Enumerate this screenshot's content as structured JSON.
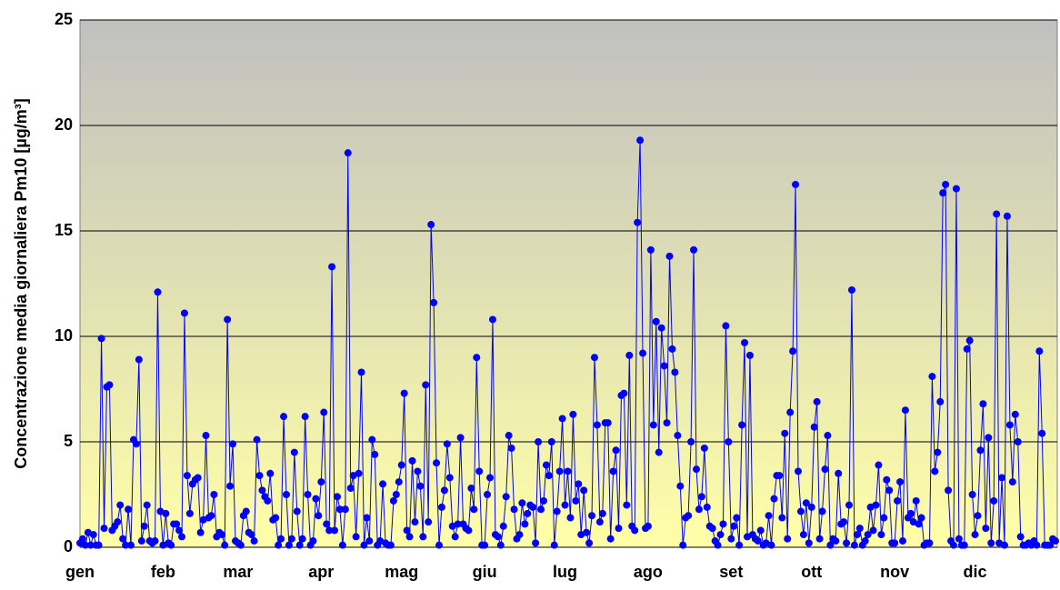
{
  "chart_data": {
    "type": "line",
    "y_label": "Concentrazione media giornaliera Pm10 [µg/m³]",
    "categories": [
      "gen",
      null,
      null,
      null,
      null,
      null,
      null,
      null,
      null,
      null,
      null,
      null,
      null,
      null,
      null,
      null,
      null,
      null,
      null,
      null,
      null,
      null,
      null,
      null,
      null,
      null,
      null,
      null,
      null,
      null,
      null,
      "feb",
      null,
      null,
      null,
      null,
      null,
      null,
      null,
      null,
      null,
      null,
      null,
      null,
      null,
      null,
      null,
      null,
      null,
      null,
      null,
      null,
      null,
      null,
      null,
      null,
      null,
      null,
      null,
      "mar",
      null,
      null,
      null,
      null,
      null,
      null,
      null,
      null,
      null,
      null,
      null,
      null,
      null,
      null,
      null,
      null,
      null,
      null,
      null,
      null,
      null,
      null,
      null,
      null,
      null,
      null,
      null,
      null,
      null,
      null,
      "apr",
      null,
      null,
      null,
      null,
      null,
      null,
      null,
      null,
      null,
      null,
      null,
      null,
      null,
      null,
      null,
      null,
      null,
      null,
      null,
      null,
      null,
      null,
      null,
      null,
      null,
      null,
      null,
      null,
      null,
      "mag",
      null,
      null,
      null,
      null,
      null,
      null,
      null,
      null,
      null,
      null,
      null,
      null,
      null,
      null,
      null,
      null,
      null,
      null,
      null,
      null,
      null,
      null,
      null,
      null,
      null,
      null,
      null,
      null,
      null,
      null,
      "giu",
      null,
      null,
      null,
      null,
      null,
      null,
      null,
      null,
      null,
      null,
      null,
      null,
      null,
      null,
      null,
      null,
      null,
      null,
      null,
      null,
      null,
      null,
      null,
      null,
      null,
      null,
      null,
      null,
      null,
      "lug",
      null,
      null,
      null,
      null,
      null,
      null,
      null,
      null,
      null,
      null,
      null,
      null,
      null,
      null,
      null,
      null,
      null,
      null,
      null,
      null,
      null,
      null,
      null,
      null,
      null,
      null,
      null,
      null,
      null,
      null,
      "ago",
      null,
      null,
      null,
      null,
      null,
      null,
      null,
      null,
      null,
      null,
      null,
      null,
      null,
      null,
      null,
      null,
      null,
      null,
      null,
      null,
      null,
      null,
      null,
      null,
      null,
      null,
      null,
      null,
      null,
      null,
      "set",
      null,
      null,
      null,
      null,
      null,
      null,
      null,
      null,
      null,
      null,
      null,
      null,
      null,
      null,
      null,
      null,
      null,
      null,
      null,
      null,
      null,
      null,
      null,
      null,
      null,
      null,
      null,
      null,
      null,
      "ott",
      null,
      null,
      null,
      null,
      null,
      null,
      null,
      null,
      null,
      null,
      null,
      null,
      null,
      null,
      null,
      null,
      null,
      null,
      null,
      null,
      null,
      null,
      null,
      null,
      null,
      null,
      null,
      null,
      null,
      null,
      "nov",
      null,
      null,
      null,
      null,
      null,
      null,
      null,
      null,
      null,
      null,
      null,
      null,
      null,
      null,
      null,
      null,
      null,
      null,
      null,
      null,
      null,
      null,
      null,
      null,
      null,
      null,
      null,
      null,
      null,
      "dic",
      null,
      null,
      null,
      null,
      null,
      null,
      null,
      null,
      null,
      null,
      null,
      null,
      null,
      null,
      null,
      null,
      null,
      null,
      null,
      null,
      null,
      null,
      null,
      null,
      null,
      null,
      null,
      null,
      null,
      null
    ],
    "values": [
      0.2,
      0.4,
      0.1,
      0.7,
      0.1,
      0.6,
      0.1,
      0.1,
      9.9,
      0.9,
      7.6,
      7.7,
      0.8,
      1.0,
      1.2,
      2.0,
      0.4,
      0.1,
      1.8,
      0.1,
      5.1,
      4.9,
      8.9,
      0.3,
      1.0,
      2.0,
      0.3,
      0.2,
      0.3,
      12.1,
      1.7,
      0.1,
      1.6,
      0.2,
      0.1,
      1.1,
      1.1,
      0.8,
      0.5,
      11.1,
      3.4,
      1.6,
      3.0,
      3.2,
      3.3,
      0.7,
      1.3,
      5.3,
      1.4,
      1.5,
      2.5,
      0.5,
      0.7,
      0.6,
      0.1,
      10.8,
      2.9,
      4.9,
      0.3,
      0.2,
      0.1,
      1.5,
      1.7,
      0.7,
      0.6,
      0.3,
      5.1,
      3.4,
      2.7,
      2.4,
      2.2,
      3.5,
      1.3,
      1.4,
      0.1,
      0.4,
      6.2,
      2.5,
      0.1,
      0.4,
      4.5,
      1.7,
      0.1,
      0.4,
      6.2,
      2.5,
      0.1,
      0.3,
      2.3,
      1.5,
      3.1,
      6.4,
      1.1,
      0.8,
      13.3,
      0.8,
      2.4,
      1.8,
      0.1,
      1.8,
      18.7,
      2.8,
      3.4,
      0.5,
      3.5,
      8.3,
      0.1,
      1.4,
      0.3,
      5.1,
      4.4,
      0.1,
      0.3,
      3.0,
      0.2,
      0.1,
      0.1,
      2.2,
      2.5,
      3.1,
      3.9,
      7.3,
      0.8,
      0.5,
      4.1,
      1.2,
      3.6,
      2.9,
      0.5,
      7.7,
      1.2,
      15.3,
      11.6,
      4.0,
      0.1,
      1.9,
      2.7,
      4.9,
      3.3,
      1.0,
      0.5,
      1.1,
      5.2,
      1.1,
      0.9,
      0.8,
      2.8,
      1.8,
      9.0,
      3.6,
      0.1,
      0.1,
      2.5,
      3.3,
      10.8,
      0.6,
      0.5,
      0.1,
      1.0,
      2.4,
      5.3,
      4.7,
      1.8,
      0.4,
      0.6,
      2.1,
      1.1,
      1.6,
      2.0,
      1.9,
      0.2,
      5.0,
      1.8,
      2.2,
      3.9,
      3.4,
      5.0,
      0.1,
      1.7,
      3.6,
      6.1,
      2.0,
      3.6,
      1.4,
      6.3,
      2.2,
      3.0,
      0.6,
      2.7,
      0.7,
      0.2,
      1.5,
      9.0,
      5.8,
      1.2,
      1.6,
      5.9,
      5.9,
      0.4,
      3.6,
      4.6,
      0.9,
      7.2,
      7.3,
      2.0,
      9.1,
      1.0,
      0.8,
      15.4,
      19.3,
      9.2,
      0.9,
      1.0,
      14.1,
      5.8,
      10.7,
      4.5,
      10.4,
      8.6,
      5.9,
      13.8,
      9.4,
      8.3,
      5.3,
      2.9,
      0.1,
      1.4,
      1.5,
      5.0,
      14.1,
      3.7,
      1.8,
      2.4,
      4.7,
      1.9,
      1.0,
      0.9,
      0.3,
      0.1,
      0.6,
      1.1,
      10.5,
      5.0,
      0.4,
      1.0,
      1.4,
      0.1,
      5.8,
      9.7,
      0.5,
      9.1,
      0.6,
      0.4,
      0.3,
      0.8,
      0.1,
      0.2,
      1.5,
      0.1,
      2.3,
      3.4,
      3.4,
      1.4,
      5.4,
      0.4,
      6.4,
      9.3,
      17.2,
      3.6,
      1.7,
      0.6,
      2.1,
      0.2,
      1.9,
      5.7,
      6.9,
      0.4,
      1.7,
      3.7,
      5.3,
      0.1,
      0.4,
      0.3,
      3.5,
      1.1,
      1.2,
      0.2,
      2.0,
      12.2,
      0.1,
      0.6,
      0.9,
      0.1,
      0.3,
      0.6,
      1.9,
      0.8,
      2.0,
      3.9,
      0.6,
      1.4,
      3.2,
      2.7,
      0.2,
      0.2,
      2.2,
      3.1,
      0.3,
      6.5,
      1.4,
      1.6,
      1.2,
      2.2,
      1.1,
      1.4,
      0.1,
      0.2,
      0.2,
      8.1,
      3.6,
      4.5,
      6.9,
      16.8,
      17.2,
      2.7,
      0.3,
      0.1,
      17.0,
      0.4,
      0.1,
      0.1,
      9.4,
      9.8,
      2.5,
      0.6,
      1.5,
      4.6,
      6.8,
      0.9,
      5.2,
      0.2,
      2.2,
      15.8,
      0.2,
      3.3,
      0.1,
      15.7,
      5.8,
      3.1,
      6.3,
      5.0,
      0.5,
      0.1,
      0.1,
      0.2,
      0.1,
      0.3,
      0.1,
      9.3,
      5.4,
      0.1,
      0.1,
      0.1,
      0.4,
      0.3
    ],
    "color": "#0000ff",
    "ylim": [
      0,
      25
    ],
    "yticks": [
      0,
      5,
      10,
      15,
      20,
      25
    ],
    "grid": true
  }
}
